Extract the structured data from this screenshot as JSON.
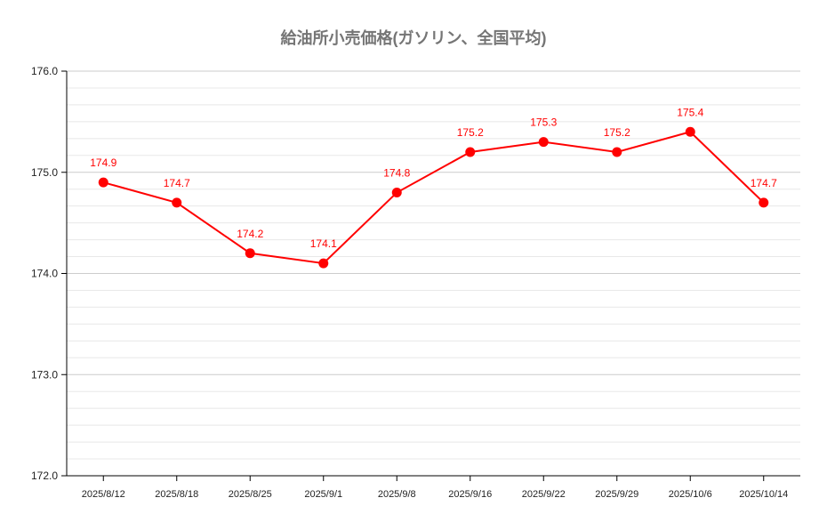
{
  "chart_data": {
    "type": "line",
    "title": "給油所小売価格(ガソリン、全国平均)",
    "categories": [
      "2025/8/12",
      "2025/8/18",
      "2025/8/25",
      "2025/9/1",
      "2025/9/8",
      "2025/9/16",
      "2025/9/22",
      "2025/9/29",
      "2025/10/6",
      "2025/10/14"
    ],
    "series": [
      {
        "values": [
          174.9,
          174.7,
          174.2,
          174.1,
          174.8,
          175.2,
          175.3,
          175.2,
          175.4,
          174.7
        ],
        "color": "#ff0000"
      }
    ],
    "data_labels": [
      "174.9",
      "174.7",
      "174.2",
      "174.1",
      "174.8",
      "175.2",
      "175.3",
      "175.2",
      "175.4",
      "174.7"
    ],
    "ylim": [
      172,
      176
    ],
    "yticks": [
      "172.0",
      "173.0",
      "174.0",
      "175.0",
      "176.0"
    ],
    "xlabel": "",
    "ylabel": "",
    "grid": true,
    "legend": "none"
  }
}
